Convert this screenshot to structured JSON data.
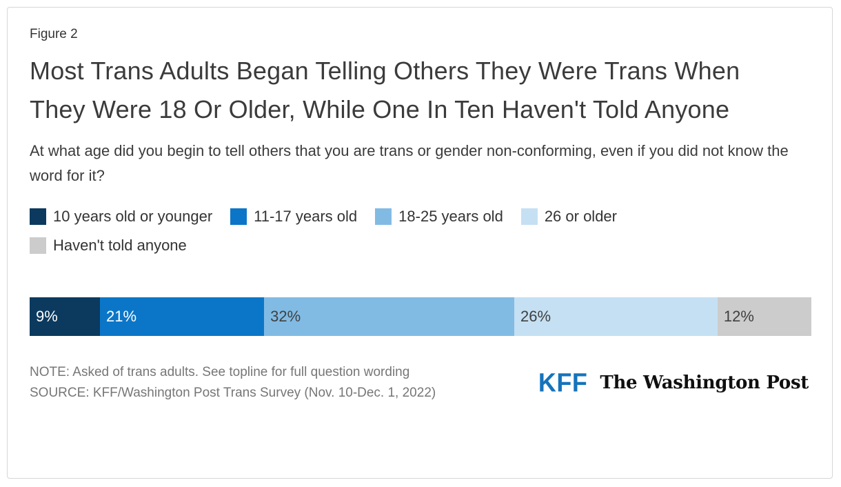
{
  "header": {
    "figure_label": "Figure 2",
    "title": "Most Trans Adults Began Telling Others They Were Trans When They Were 18 Or Older, While One In Ten Haven't Told Anyone",
    "subtitle": "At what age did you begin to tell others that you are trans or gender non-conforming, even if you did not know the word for it?"
  },
  "chart_data": {
    "type": "bar",
    "stacked": true,
    "orientation": "horizontal",
    "title": "Most Trans Adults Began Telling Others They Were Trans When They Were 18 Or Older, While One In Ten Haven't Told Anyone",
    "question": "At what age did you begin to tell others that you are trans or gender non-conforming, even if you did not know the word for it?",
    "categories": [
      "10 years old or younger",
      "11-17 years old",
      "18-25 years old",
      "26 or older",
      "Haven't told anyone"
    ],
    "values": [
      9,
      21,
      32,
      26,
      12
    ],
    "unit": "%",
    "data_labels": [
      "9%",
      "21%",
      "32%",
      "26%",
      "12%"
    ],
    "colors": [
      "#0b3a5e",
      "#0b76c8",
      "#81bbe4",
      "#c5e0f3",
      "#cccccc"
    ],
    "data_label_colors": [
      "#ffffff",
      "#ffffff",
      "#404040",
      "#404040",
      "#404040"
    ],
    "xlim": [
      0,
      100
    ],
    "legend_position": "top",
    "grid": false
  },
  "footer": {
    "note": "NOTE: Asked of trans adults. See topline for full question wording",
    "source": "SOURCE: KFF/Washington Post Trans Survey (Nov. 10-Dec. 1, 2022)"
  },
  "brand": {
    "kff_label": "KFF",
    "kff_color": "#1574bb",
    "wapo_label": "The Washington Post"
  }
}
